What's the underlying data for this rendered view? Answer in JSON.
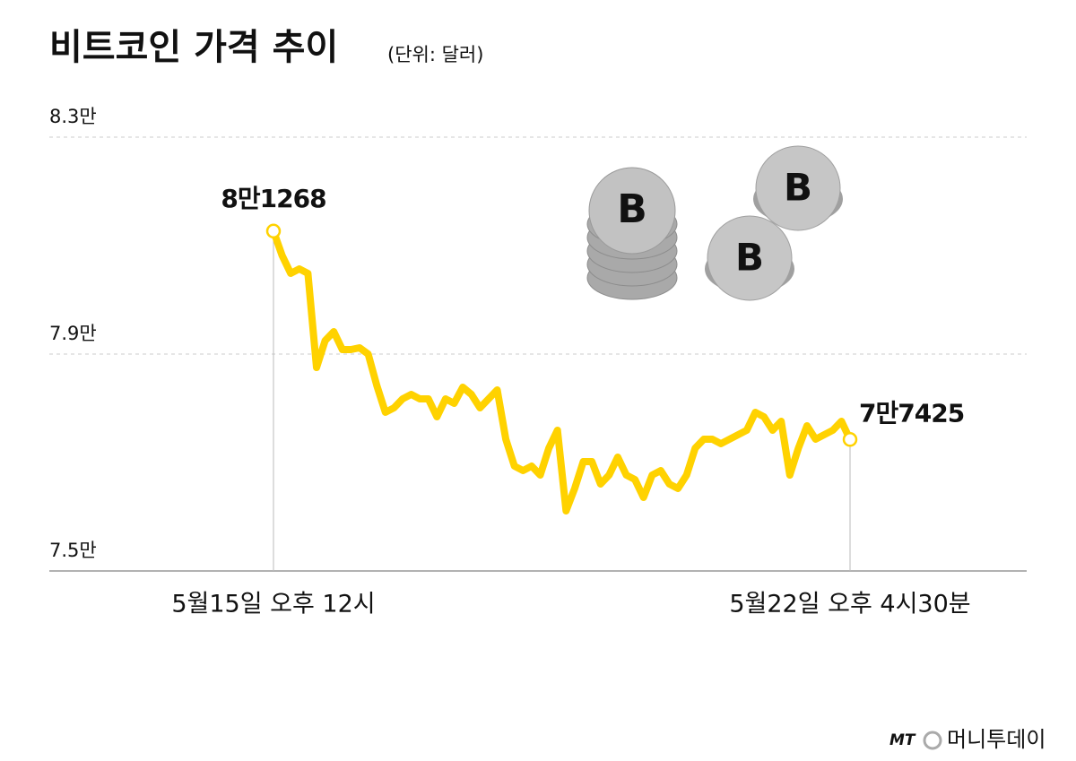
{
  "chart_data": {
    "type": "line",
    "title": "비트코인 가격 추이",
    "subtitle": "(단위: 달러)",
    "categories": [
      "5월15일 오후 12시",
      null,
      null,
      null,
      null,
      null,
      null,
      null,
      null,
      null,
      null,
      null,
      null,
      null,
      null,
      null,
      null,
      null,
      null,
      null,
      null,
      null,
      null,
      null,
      null,
      null,
      null,
      null,
      null,
      null,
      null,
      null,
      null,
      null,
      null,
      null,
      null,
      null,
      null,
      null,
      null,
      null,
      null,
      null,
      null,
      null,
      null,
      null,
      null,
      null,
      null,
      null,
      null,
      null,
      null,
      null,
      null,
      null,
      null,
      null,
      null,
      null,
      null,
      null,
      null,
      null,
      null,
      "5월22일 오후 4시30분"
    ],
    "values": [
      81268,
      80818,
      80487,
      80570,
      80487,
      78752,
      79248,
      79413,
      79083,
      79083,
      79116,
      79000,
      78421,
      77925,
      78008,
      78174,
      78256,
      78174,
      78174,
      77843,
      78174,
      78091,
      78388,
      78256,
      78008,
      78174,
      78339,
      77430,
      76934,
      76851,
      76934,
      76768,
      77264,
      77595,
      76107,
      76520,
      77016,
      77016,
      76603,
      76768,
      77099,
      76768,
      76686,
      76355,
      76768,
      76851,
      76603,
      76520,
      76768,
      77264,
      77430,
      77430,
      77347,
      77430,
      77512,
      77595,
      77925,
      77843,
      77595,
      77760,
      76768,
      77264,
      77678,
      77430,
      77512,
      77595,
      77760,
      77425
    ],
    "value_labels": [
      "8만1268",
      null,
      null,
      null,
      null,
      null,
      null,
      null,
      null,
      null,
      null,
      null,
      null,
      null,
      null,
      null,
      null,
      null,
      null,
      null,
      null,
      null,
      null,
      null,
      null,
      null,
      null,
      null,
      null,
      null,
      null,
      null,
      null,
      null,
      null,
      null,
      null,
      null,
      null,
      null,
      null,
      null,
      null,
      null,
      null,
      null,
      null,
      null,
      null,
      null,
      null,
      null,
      null,
      null,
      null,
      null,
      null,
      null,
      null,
      null,
      null,
      null,
      null,
      null,
      null,
      null,
      null,
      "7만7425"
    ],
    "color": "#ffd200",
    "ylim": [
      75000,
      83000
    ],
    "yticks": [
      {
        "value": 75000,
        "label": "7.5만"
      },
      {
        "value": 79000,
        "label": "7.9만"
      },
      {
        "value": 83000,
        "label": "8.3만"
      }
    ],
    "grid": true,
    "logo": {
      "mark": "MT",
      "name": "머니투데이"
    }
  }
}
